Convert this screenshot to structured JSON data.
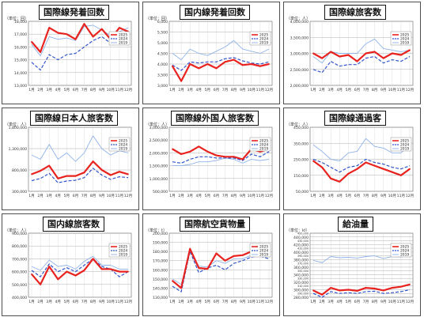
{
  "month_labels": [
    "1月",
    "2月",
    "3月",
    "4月",
    "5月",
    "6月",
    "7月",
    "8月",
    "9月",
    "10月",
    "11月",
    "12月"
  ],
  "legend_names": [
    "2025",
    "2024",
    "2019"
  ],
  "colors": {
    "s2025": "#e8231f",
    "s2024": "#3355cc",
    "s2019": "#8fb3e8"
  },
  "chart_data": [
    {
      "type": "line",
      "title": "国際線発着回数",
      "unit": "（単位：回）",
      "ylim": [
        13000,
        18000
      ],
      "yticks": [
        13000,
        14000,
        15000,
        16000,
        17000,
        18000
      ],
      "ytick_labels": [
        "13,000",
        "14,000",
        "15,000",
        "16,000",
        "17,000",
        "18,000"
      ],
      "series": [
        {
          "name": "2025",
          "values": [
            16400,
            15600,
            17500,
            17100,
            17000,
            16600,
            17800,
            16800,
            17400,
            16600,
            17500,
            17200
          ]
        },
        {
          "name": "2024",
          "values": [
            14800,
            14200,
            15400,
            15000,
            15400,
            15500,
            16000,
            16500,
            16800,
            16300,
            16600,
            17000
          ]
        },
        {
          "name": "2019",
          "values": [
            16200,
            15300,
            16800,
            16600,
            16700,
            16500,
            17600,
            17700,
            17300,
            16900,
            17200,
            17500
          ]
        }
      ]
    },
    {
      "type": "line",
      "title": "国内線発着回数",
      "unit": "（単位：回）",
      "ylim": [
        3000,
        6000
      ],
      "yticks": [
        3000,
        3500,
        4000,
        4500,
        5000,
        5500,
        6000
      ],
      "ytick_labels": [
        "3,000",
        "3,500",
        "4,000",
        "4,500",
        "5,000",
        "5,500",
        "6,000"
      ],
      "series": [
        {
          "name": "2025",
          "values": [
            3900,
            3200,
            4000,
            3800,
            4000,
            3800,
            4100,
            4200,
            3950,
            4000,
            3900,
            4000
          ]
        },
        {
          "name": "2024",
          "values": [
            3950,
            3700,
            4100,
            4050,
            4100,
            4100,
            4250,
            4300,
            4150,
            4050,
            4000,
            4100
          ]
        },
        {
          "name": "2019",
          "values": [
            4500,
            4200,
            4700,
            4500,
            4400,
            4600,
            4800,
            5100,
            4700,
            4600,
            4500,
            4700
          ]
        }
      ]
    },
    {
      "type": "line",
      "title": "国際線旅客数",
      "unit": "（単位：人）",
      "ylim": [
        2000000,
        4000000
      ],
      "yticks": [
        2000000,
        2500000,
        3000000,
        3500000,
        4000000
      ],
      "ytick_labels": [
        "2,000,000",
        "2,500,000",
        "3,000,000",
        "3,500,000",
        "4,000,000"
      ],
      "series": [
        {
          "name": "2025",
          "values": [
            3000000,
            2850000,
            3050000,
            2900000,
            2950000,
            2750000,
            3000000,
            3050000,
            2850000,
            3000000,
            2950000,
            3100000
          ]
        },
        {
          "name": "2024",
          "values": [
            2500000,
            2400000,
            2750000,
            2600000,
            2650000,
            2650000,
            2850000,
            2900000,
            2700000,
            2800000,
            2750000,
            2900000
          ]
        },
        {
          "name": "2019",
          "values": [
            2900000,
            2700000,
            3050000,
            3000000,
            3000000,
            3000000,
            3300000,
            3450000,
            3150000,
            3100000,
            3050000,
            3100000
          ]
        }
      ]
    },
    {
      "type": "line",
      "title": "国際線日本人旅客数",
      "unit": "（単位：人）",
      "ylim": [
        300000,
        1800000
      ],
      "yticks": [
        300000,
        800000,
        1300000,
        1800000
      ],
      "ytick_labels": [
        "300,000",
        "800,000",
        "1,300,000",
        "1,800,000"
      ],
      "series": [
        {
          "name": "2025",
          "values": [
            700000,
            780000,
            900000,
            600000,
            660000,
            660000,
            740000,
            1000000,
            800000,
            680000,
            760000,
            700000
          ]
        },
        {
          "name": "2024",
          "values": [
            550000,
            600000,
            720000,
            500000,
            540000,
            560000,
            620000,
            840000,
            680000,
            580000,
            640000,
            620000
          ]
        },
        {
          "name": "2019",
          "values": [
            1150000,
            1050000,
            1400000,
            1050000,
            1200000,
            1000000,
            1200000,
            1600000,
            1300000,
            1150000,
            1250000,
            1200000
          ]
        }
      ]
    },
    {
      "type": "line",
      "title": "国際線外国人旅客数",
      "unit": "（単位：人）",
      "ylim": [
        500000,
        3000000
      ],
      "yticks": [
        500000,
        1000000,
        1500000,
        2000000,
        2500000,
        3000000
      ],
      "ytick_labels": [
        "500,000",
        "1,000,000",
        "1,500,000",
        "2,000,000",
        "2,500,000",
        "3,000,000"
      ],
      "series": [
        {
          "name": "2025",
          "values": [
            2150000,
            1950000,
            2050000,
            2250000,
            2050000,
            1900000,
            1850000,
            1850000,
            1750000,
            2150000,
            2050000,
            2150000
          ]
        },
        {
          "name": "2024",
          "values": [
            1650000,
            1600000,
            1750000,
            1850000,
            1850000,
            1800000,
            1800000,
            1800000,
            1700000,
            1950000,
            1850000,
            2050000
          ]
        },
        {
          "name": "2019",
          "values": [
            1500000,
            1500000,
            1550000,
            1650000,
            1650000,
            1700000,
            1800000,
            1750000,
            1600000,
            1750000,
            1700000,
            1750000
          ]
        }
      ]
    },
    {
      "type": "line",
      "title": "国際線通過客",
      "unit": "（単位：人）",
      "ylim": [
        50000,
        450000
      ],
      "yticks": [
        50000,
        150000,
        250000,
        350000,
        450000
      ],
      "ytick_labels": [
        "50,000",
        "150,000",
        "250,000",
        "350,000",
        "450,000"
      ],
      "series": [
        {
          "name": "2025",
          "values": [
            240000,
            200000,
            130000,
            110000,
            160000,
            190000,
            230000,
            210000,
            190000,
            170000,
            150000,
            190000
          ]
        },
        {
          "name": "2024",
          "values": [
            250000,
            230000,
            200000,
            170000,
            200000,
            210000,
            250000,
            230000,
            220000,
            200000,
            190000,
            210000
          ]
        },
        {
          "name": "2019",
          "values": [
            340000,
            300000,
            250000,
            240000,
            290000,
            300000,
            380000,
            330000,
            320000,
            290000,
            290000,
            340000
          ]
        }
      ]
    },
    {
      "type": "line",
      "title": "国内線旅客数",
      "unit": "（単位：人）",
      "ylim": [
        400000,
        900000
      ],
      "yticks": [
        400000,
        500000,
        600000,
        700000,
        800000,
        900000
      ],
      "ytick_labels": [
        "400,000",
        "500,000",
        "600,000",
        "700,000",
        "800,000",
        "900,000"
      ],
      "series": [
        {
          "name": "2025",
          "values": [
            580000,
            500000,
            640000,
            540000,
            600000,
            570000,
            610000,
            700000,
            620000,
            620000,
            600000,
            600000
          ]
        },
        {
          "name": "2024",
          "values": [
            610000,
            560000,
            660000,
            600000,
            630000,
            600000,
            650000,
            700000,
            640000,
            620000,
            560000,
            600000
          ]
        },
        {
          "name": "2019",
          "values": [
            640000,
            610000,
            690000,
            640000,
            650000,
            620000,
            680000,
            720000,
            650000,
            650000,
            620000,
            620000
          ]
        }
      ]
    },
    {
      "type": "line",
      "title": "国際航空貨物量",
      "unit": "（単位：t）",
      "ylim": [
        130000,
        200000
      ],
      "yticks": [
        130000,
        140000,
        150000,
        160000,
        170000,
        180000,
        190000,
        200000
      ],
      "ytick_labels": [
        "130,000",
        "140,000",
        "150,000",
        "160,000",
        "170,000",
        "180,000",
        "190,000",
        "200,000"
      ],
      "series": [
        {
          "name": "2025",
          "values": [
            148000,
            140000,
            183000,
            162000,
            161000,
            178000,
            170000,
            175000,
            176000,
            180000,
            188000,
            185000
          ]
        },
        {
          "name": "2024",
          "values": [
            142000,
            136000,
            180000,
            157000,
            162000,
            165000,
            160000,
            167000,
            170000,
            174000,
            175000,
            172000
          ]
        },
        {
          "name": "2019",
          "values": [
            150000,
            144000,
            181000,
            164000,
            163000,
            170000,
            167000,
            172000,
            172000,
            176000,
            178000,
            178000
          ]
        }
      ]
    },
    {
      "type": "line",
      "title": "給油量",
      "unit": "（単位：kl）",
      "ylim": [
        280000,
        450000
      ],
      "yticks": [
        280000,
        290000,
        300000,
        310000,
        320000,
        330000,
        340000,
        350000,
        360000,
        370000,
        380000,
        390000,
        400000,
        410000,
        420000,
        430000,
        440000,
        450000
      ],
      "ytick_labels": [
        "280,000",
        "290,000",
        "300,000",
        "310,000",
        "320,000",
        "330,000",
        "340,000",
        "350,000",
        "360,000",
        "370,000",
        "380,000",
        "390,000",
        "400,000",
        "410,000",
        "420,000",
        "430,000",
        "440,000",
        "450,000"
      ],
      "series": [
        {
          "name": "2025",
          "values": [
            298000,
            287000,
            305000,
            298000,
            300000,
            297000,
            305000,
            303000,
            298000,
            305000,
            308000,
            314000
          ]
        },
        {
          "name": "2024",
          "values": [
            290000,
            280000,
            295000,
            290000,
            292000,
            290000,
            295000,
            296000,
            290000,
            292000,
            295000,
            300000
          ]
        },
        {
          "name": "2019",
          "values": [
            378000,
            372000,
            388000,
            385000,
            386000,
            384000,
            388000,
            390000,
            383000,
            388000,
            387000,
            390000
          ]
        }
      ]
    }
  ]
}
